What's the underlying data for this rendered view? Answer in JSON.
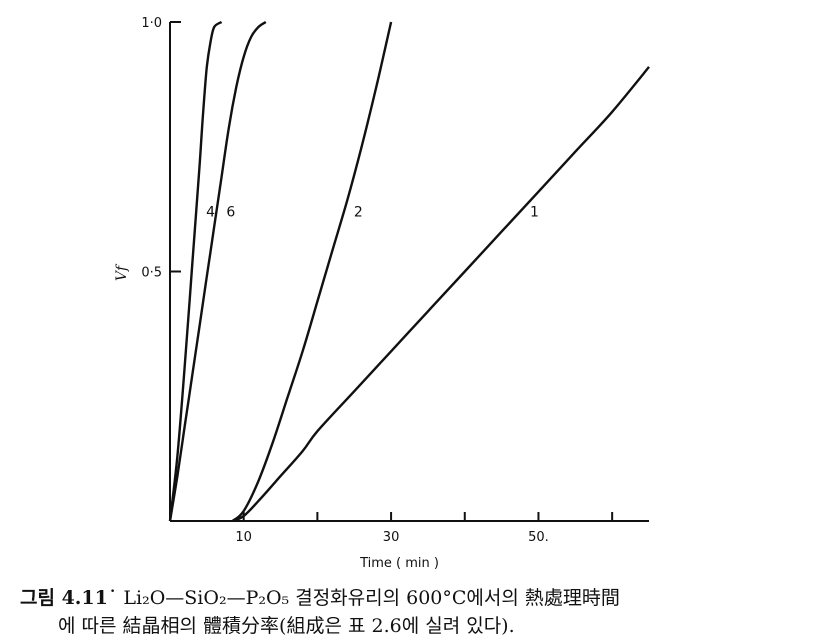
{
  "chart_data": {
    "type": "line",
    "title": "",
    "xlabel": "Time ( min )",
    "ylabel": "Vf",
    "xlim": [
      0,
      65
    ],
    "ylim": [
      0,
      1.0
    ],
    "x_ticks": [
      10,
      20,
      30,
      40,
      50,
      60
    ],
    "x_tick_labels": [
      "10",
      "",
      "30",
      "",
      "50.",
      ""
    ],
    "y_ticks": [
      0.5,
      1.0
    ],
    "y_tick_labels": [
      "0·5",
      "1·0"
    ],
    "grid": false,
    "series": [
      {
        "name": "4",
        "x": [
          0,
          1,
          2,
          3,
          4,
          4.5,
          5,
          5.5,
          6,
          7
        ],
        "y": [
          0,
          0.13,
          0.31,
          0.51,
          0.71,
          0.82,
          0.91,
          0.96,
          0.99,
          1.0
        ]
      },
      {
        "name": "6",
        "x": [
          0,
          1,
          2,
          3,
          4,
          5,
          6,
          7,
          8,
          9,
          10,
          11,
          12,
          13
        ],
        "y": [
          0,
          0.09,
          0.19,
          0.29,
          0.39,
          0.49,
          0.59,
          0.69,
          0.79,
          0.87,
          0.93,
          0.97,
          0.99,
          1.0
        ]
      },
      {
        "name": "2",
        "x": [
          8.5,
          10,
          12,
          14,
          16,
          18,
          20,
          22,
          24,
          26,
          28,
          30
        ],
        "y": [
          0,
          0.02,
          0.08,
          0.16,
          0.25,
          0.34,
          0.44,
          0.54,
          0.64,
          0.75,
          0.87,
          1.0
        ]
      },
      {
        "name": "1",
        "x": [
          8.5,
          10,
          12,
          15,
          18,
          20,
          25,
          30,
          35,
          40,
          45,
          50,
          55,
          60,
          65
        ],
        "y": [
          0,
          0.01,
          0.04,
          0.09,
          0.14,
          0.18,
          0.26,
          0.34,
          0.42,
          0.5,
          0.58,
          0.66,
          0.74,
          0.82,
          0.91
        ]
      }
    ]
  },
  "caption": {
    "fig_label": "그림 4.11˙",
    "line1_rest": "Li₂O—SiO₂—P₂O₅ 결정화유리의  600°C에서의  熱處理時間",
    "line2": "에 따른 結晶相의 體積分率(組成은 표 2.6에 실려 있다)."
  }
}
